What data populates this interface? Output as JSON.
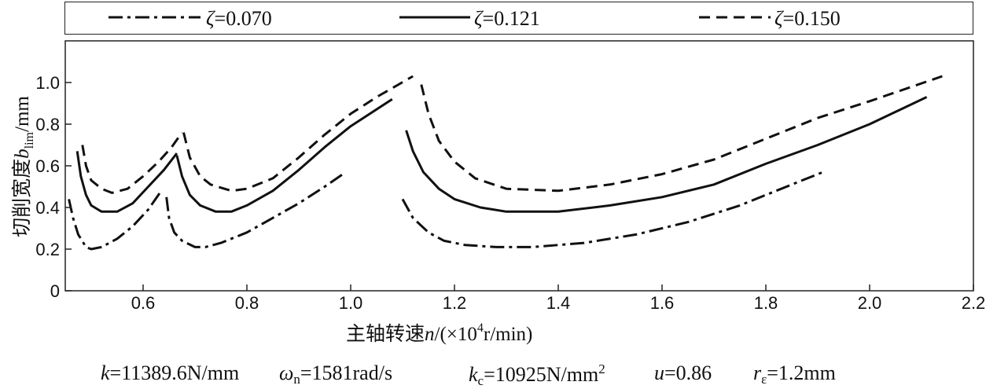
{
  "chart_data": {
    "type": "line",
    "title": "",
    "xlabel": "主轴转速n/(×10⁴r/min)",
    "xlabel_parts": {
      "prefix": "主轴转速",
      "var": "n",
      "unit_pre": "/(×10",
      "unit_sup": "4",
      "unit_post": "r/min)"
    },
    "ylabel": "切削宽度b_lim/mm",
    "ylabel_parts": {
      "prefix": "切削宽度",
      "var": "b",
      "sub": "lim",
      "unit": "/mm"
    },
    "xlim": [
      0.45,
      2.2
    ],
    "ylim": [
      0,
      1.2
    ],
    "x_ticks": [
      "0.6",
      "0.8",
      "1.0",
      "1.2",
      "1.4",
      "1.6",
      "1.8",
      "2.0",
      "2.2"
    ],
    "y_ticks": [
      "0",
      "0.2",
      "0.4",
      "0.6",
      "0.8",
      "1.0"
    ],
    "grid": false,
    "legend_placement": "top",
    "legend": [
      {
        "symbol": "ζ",
        "text": "=0.070",
        "style": "dashdot"
      },
      {
        "symbol": "ζ",
        "text": "=0.121",
        "style": "solid"
      },
      {
        "symbol": "ζ",
        "text": "=0.150",
        "style": "dashed"
      }
    ],
    "series": [
      {
        "name": "ζ=0.070",
        "style": "dashdot",
        "segments": [
          [
            [
              0.457,
              0.44
            ],
            [
              0.465,
              0.35
            ],
            [
              0.475,
              0.27
            ],
            [
              0.49,
              0.21
            ],
            [
              0.5,
              0.2
            ],
            [
              0.52,
              0.21
            ],
            [
              0.55,
              0.25
            ],
            [
              0.58,
              0.31
            ],
            [
              0.61,
              0.39
            ],
            [
              0.635,
              0.48
            ]
          ],
          [
            [
              0.645,
              0.45
            ],
            [
              0.65,
              0.35
            ],
            [
              0.66,
              0.28
            ],
            [
              0.675,
              0.24
            ],
            [
              0.7,
              0.21
            ],
            [
              0.72,
              0.21
            ],
            [
              0.75,
              0.23
            ],
            [
              0.8,
              0.28
            ],
            [
              0.85,
              0.35
            ],
            [
              0.9,
              0.42
            ],
            [
              0.95,
              0.5
            ],
            [
              0.985,
              0.56
            ]
          ],
          [
            [
              1.1,
              0.44
            ],
            [
              1.12,
              0.35
            ],
            [
              1.15,
              0.28
            ],
            [
              1.18,
              0.24
            ],
            [
              1.22,
              0.22
            ],
            [
              1.28,
              0.21
            ],
            [
              1.35,
              0.21
            ],
            [
              1.45,
              0.23
            ],
            [
              1.55,
              0.27
            ],
            [
              1.65,
              0.33
            ],
            [
              1.75,
              0.41
            ],
            [
              1.85,
              0.51
            ],
            [
              1.91,
              0.57
            ]
          ]
        ]
      },
      {
        "name": "ζ=0.121",
        "style": "solid",
        "segments": [
          [
            [
              0.473,
              0.67
            ],
            [
              0.48,
              0.55
            ],
            [
              0.49,
              0.46
            ],
            [
              0.5,
              0.41
            ],
            [
              0.52,
              0.38
            ],
            [
              0.55,
              0.38
            ],
            [
              0.58,
              0.42
            ],
            [
              0.61,
              0.5
            ],
            [
              0.64,
              0.58
            ],
            [
              0.665,
              0.66
            ]
          ],
          [
            [
              0.665,
              0.65
            ],
            [
              0.675,
              0.55
            ],
            [
              0.69,
              0.46
            ],
            [
              0.71,
              0.41
            ],
            [
              0.74,
              0.38
            ],
            [
              0.77,
              0.38
            ],
            [
              0.8,
              0.41
            ],
            [
              0.85,
              0.48
            ],
            [
              0.9,
              0.58
            ],
            [
              0.95,
              0.69
            ],
            [
              1.0,
              0.79
            ],
            [
              1.08,
              0.92
            ]
          ],
          [
            [
              1.107,
              0.77
            ],
            [
              1.12,
              0.67
            ],
            [
              1.14,
              0.57
            ],
            [
              1.17,
              0.49
            ],
            [
              1.2,
              0.44
            ],
            [
              1.25,
              0.4
            ],
            [
              1.3,
              0.38
            ],
            [
              1.4,
              0.38
            ],
            [
              1.5,
              0.41
            ],
            [
              1.6,
              0.45
            ],
            [
              1.7,
              0.51
            ],
            [
              1.8,
              0.61
            ],
            [
              1.9,
              0.7
            ],
            [
              2.0,
              0.8
            ],
            [
              2.11,
              0.93
            ]
          ]
        ]
      },
      {
        "name": "ζ=0.150",
        "style": "dashed",
        "segments": [
          [
            [
              0.483,
              0.7
            ],
            [
              0.49,
              0.6
            ],
            [
              0.5,
              0.53
            ],
            [
              0.52,
              0.49
            ],
            [
              0.54,
              0.47
            ],
            [
              0.57,
              0.49
            ],
            [
              0.6,
              0.55
            ],
            [
              0.63,
              0.62
            ],
            [
              0.655,
              0.69
            ],
            [
              0.675,
              0.76
            ]
          ],
          [
            [
              0.678,
              0.76
            ],
            [
              0.69,
              0.64
            ],
            [
              0.71,
              0.55
            ],
            [
              0.73,
              0.51
            ],
            [
              0.77,
              0.48
            ],
            [
              0.8,
              0.49
            ],
            [
              0.85,
              0.54
            ],
            [
              0.9,
              0.64
            ],
            [
              0.95,
              0.75
            ],
            [
              1.0,
              0.85
            ],
            [
              1.05,
              0.93
            ],
            [
              1.12,
              1.03
            ]
          ],
          [
            [
              1.136,
              0.99
            ],
            [
              1.15,
              0.85
            ],
            [
              1.17,
              0.72
            ],
            [
              1.2,
              0.62
            ],
            [
              1.24,
              0.54
            ],
            [
              1.3,
              0.49
            ],
            [
              1.4,
              0.48
            ],
            [
              1.5,
              0.51
            ],
            [
              1.6,
              0.56
            ],
            [
              1.7,
              0.63
            ],
            [
              1.8,
              0.73
            ],
            [
              1.9,
              0.83
            ],
            [
              2.0,
              0.91
            ],
            [
              2.14,
              1.03
            ]
          ]
        ]
      }
    ]
  },
  "parameters": [
    {
      "var": "k",
      "sub": "",
      "text": "=11389.6N/mm",
      "sup": ""
    },
    {
      "var": "ω",
      "sub": "n",
      "text": "=1581rad/s",
      "sup": ""
    },
    {
      "var": "k",
      "sub": "c",
      "text": "=10925N/mm",
      "sup": "2"
    },
    {
      "var": "u",
      "sub": "",
      "text": "=0.86",
      "sup": ""
    },
    {
      "var": "r",
      "sub": "ε",
      "text": "=1.2mm",
      "sup": ""
    }
  ]
}
